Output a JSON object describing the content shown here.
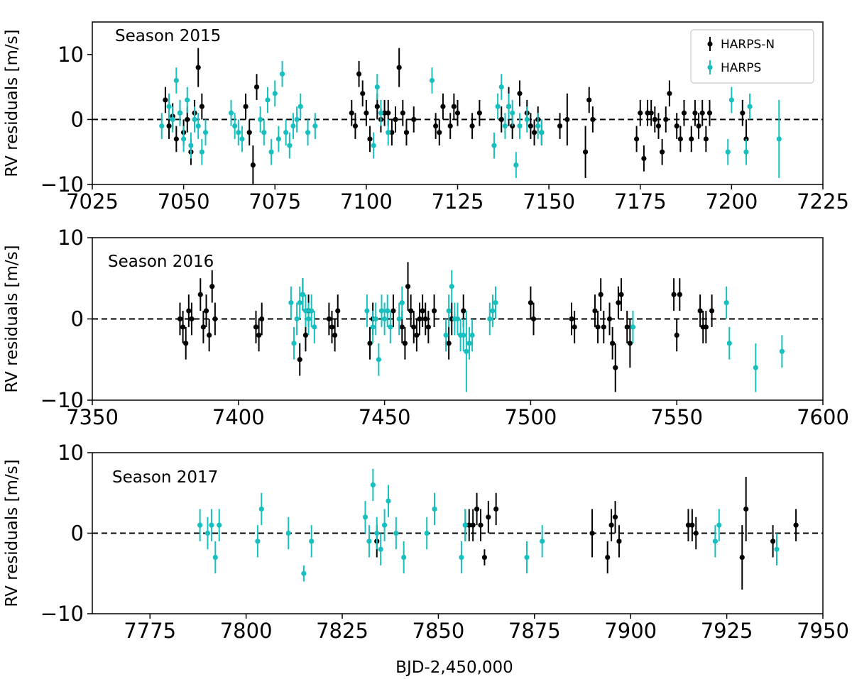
{
  "figure": {
    "xlabel": "BJD-2,450,000",
    "ylabel": "RV residuals [m/s]"
  },
  "colors": {
    "harps_n": "#000000",
    "harps": "#17bfbf",
    "zero_line": "#000000"
  },
  "legend": {
    "placement": "top-right of first panel",
    "entries": [
      "HARPS-N",
      "HARPS"
    ]
  },
  "chart_data": [
    {
      "type": "scatter",
      "title": "Season 2015",
      "xlim": [
        7025,
        7225
      ],
      "ylim": [
        -10,
        15
      ],
      "xticks": [
        7025,
        7050,
        7075,
        7100,
        7125,
        7150,
        7175,
        7200,
        7225
      ],
      "yticks": [
        -10,
        0,
        10
      ],
      "reference_line": 0,
      "series": [
        {
          "name": "HARPS-N",
          "x": [
            7045,
            7046,
            7047,
            7048,
            7049,
            7050,
            7051,
            7052,
            7053,
            7054,
            7055,
            7067,
            7068,
            7069,
            7070,
            7096,
            7097,
            7098,
            7099,
            7100,
            7101,
            7103,
            7104,
            7105,
            7106,
            7107,
            7108,
            7109,
            7110,
            7111,
            7113,
            7119,
            7120,
            7121,
            7123,
            7124,
            7125,
            7129,
            7131,
            7137,
            7139,
            7140,
            7142,
            7144,
            7145,
            7146,
            7147,
            7148,
            7153,
            7155,
            7160,
            7161,
            7162,
            7174,
            7175,
            7176,
            7177,
            7178,
            7179,
            7180,
            7181,
            7182,
            7183,
            7185,
            7186,
            7187,
            7189,
            7190,
            7191,
            7192,
            7193,
            7194,
            7203,
            7204
          ],
          "y": [
            3,
            -1,
            0.5,
            -3,
            1,
            -2,
            0,
            -5,
            1,
            8,
            2,
            2,
            -2,
            -7,
            5,
            1,
            -1,
            7,
            4,
            1,
            -3,
            2,
            0,
            1,
            1,
            -2,
            0,
            8,
            1,
            -2,
            0,
            -1,
            -2,
            2,
            -1,
            2,
            1,
            -1,
            1,
            0,
            2,
            -1,
            4,
            1,
            -1,
            -2,
            0,
            -2,
            -1,
            0,
            -5,
            3,
            0,
            -3,
            1,
            -6,
            1,
            1,
            0,
            -1,
            -5,
            0,
            4,
            -1,
            -3,
            1,
            -3,
            1,
            -1,
            1,
            -3,
            1,
            1,
            -3
          ],
          "err": [
            2,
            2,
            2,
            2,
            2,
            2,
            2,
            2,
            2,
            3,
            2,
            2,
            2,
            3,
            2,
            2,
            2,
            2,
            2,
            2,
            2,
            2,
            2,
            2,
            2,
            2,
            2,
            3,
            2,
            2,
            2,
            2,
            2,
            2,
            2,
            2,
            2,
            2,
            2,
            2,
            3,
            2,
            2,
            2,
            2,
            2,
            2,
            2,
            2,
            4,
            4,
            2,
            2,
            2,
            2,
            2,
            2,
            2,
            2,
            2,
            2,
            2,
            2,
            2,
            2,
            2,
            2,
            2,
            2,
            2,
            2,
            2,
            2,
            3
          ]
        },
        {
          "name": "HARPS",
          "x": [
            7044,
            7046,
            7047,
            7048,
            7049,
            7050,
            7051,
            7052,
            7053,
            7054,
            7055,
            7056,
            7063,
            7064,
            7065,
            7066,
            7071,
            7072,
            7073,
            7074,
            7075,
            7076,
            7077,
            7078,
            7079,
            7080,
            7081,
            7082,
            7084,
            7086,
            7102,
            7103,
            7104,
            7106,
            7118,
            7135,
            7136,
            7137,
            7138,
            7139,
            7140,
            7141,
            7142,
            7144,
            7147,
            7148,
            7199,
            7200,
            7204,
            7205,
            7213
          ],
          "y": [
            -1,
            2,
            0,
            6,
            1,
            -3,
            3,
            -4,
            0,
            -1,
            -5,
            -2,
            1,
            -1,
            -2,
            -3,
            0,
            -2,
            3,
            -5,
            4,
            -3,
            7,
            -2,
            -4,
            -1,
            0,
            2,
            -2,
            -1,
            -4,
            5,
            1,
            -2,
            6,
            -4,
            2,
            5,
            -1,
            2,
            1,
            -7,
            -1,
            0,
            -1,
            -2,
            -5,
            3,
            -5,
            2,
            -3
          ],
          "err": [
            2,
            2,
            2,
            2,
            2,
            2,
            2,
            2,
            2,
            2,
            2,
            2,
            2,
            2,
            2,
            2,
            2,
            2,
            2,
            2,
            2,
            2,
            2,
            2,
            2,
            2,
            2,
            2,
            2,
            2,
            2,
            2,
            2,
            2,
            2,
            2,
            2,
            2,
            2,
            2,
            2,
            2,
            2,
            2,
            2,
            2,
            2,
            2,
            2,
            2,
            6
          ]
        }
      ]
    },
    {
      "type": "scatter",
      "title": "Season 2016",
      "xlim": [
        7350,
        7600
      ],
      "ylim": [
        -10,
        10
      ],
      "xticks": [
        7350,
        7400,
        7450,
        7500,
        7550,
        7600
      ],
      "yticks": [
        -10,
        0,
        10
      ],
      "reference_line": 0,
      "series": [
        {
          "name": "HARPS-N",
          "x": [
            7380,
            7381,
            7382,
            7383,
            7384,
            7387,
            7388,
            7389,
            7390,
            7391,
            7392,
            7406,
            7407,
            7408,
            7421,
            7422,
            7423,
            7424,
            7431,
            7432,
            7433,
            7434,
            7445,
            7446,
            7453,
            7456,
            7457,
            7458,
            7459,
            7460,
            7461,
            7462,
            7463,
            7464,
            7465,
            7467,
            7472,
            7473,
            7477,
            7500,
            7501,
            7514,
            7515,
            7522,
            7523,
            7524,
            7525,
            7527,
            7528,
            7529,
            7530,
            7531,
            7533,
            7534,
            7549,
            7550,
            7551,
            7558,
            7559,
            7560,
            7562
          ],
          "y": [
            0,
            -1,
            -3,
            1,
            0,
            3,
            -1,
            1,
            -2,
            4,
            0,
            -1,
            -2,
            0,
            -5,
            3,
            -2,
            1,
            0,
            -1,
            -2,
            1,
            -3,
            0,
            1,
            -1,
            -3,
            4,
            1,
            -1,
            -2,
            0,
            1,
            0,
            -1,
            1,
            -3,
            0,
            1,
            2,
            0,
            0,
            -1,
            1,
            -1,
            3,
            -1,
            0,
            -3,
            -6,
            2,
            3,
            -1,
            -3,
            3,
            -2,
            3,
            1,
            -1,
            -1,
            1
          ],
          "err": [
            2,
            2,
            2,
            2,
            2,
            2,
            2,
            2,
            2,
            2,
            2,
            2,
            2,
            2,
            2,
            2,
            2,
            2,
            2,
            2,
            2,
            2,
            2,
            2,
            2,
            2,
            2,
            3,
            2,
            2,
            2,
            2,
            2,
            2,
            2,
            2,
            2,
            2,
            2,
            2,
            2,
            2,
            2,
            2,
            2,
            2,
            2,
            2,
            2,
            3,
            2,
            2,
            2,
            3,
            2,
            2,
            2,
            2,
            2,
            2,
            2
          ]
        },
        {
          "name": "HARPS",
          "x": [
            7418,
            7419,
            7420,
            7421,
            7422,
            7423,
            7424,
            7425,
            7426,
            7444,
            7446,
            7447,
            7448,
            7449,
            7450,
            7451,
            7452,
            7455,
            7456,
            7471,
            7472,
            7473,
            7474,
            7475,
            7476,
            7477,
            7478,
            7479,
            7480,
            7486,
            7487,
            7488,
            7535,
            7567,
            7568,
            7577,
            7586
          ],
          "y": [
            2,
            -3,
            0,
            2,
            3,
            1,
            0,
            1,
            -1,
            1,
            -1,
            0,
            -5,
            1,
            0,
            1,
            -1,
            0,
            2,
            -2,
            1,
            4,
            0,
            0,
            -2,
            -2,
            -4,
            -3,
            -2,
            0,
            1,
            2,
            -1,
            2,
            -3,
            -6,
            -4
          ],
          "err": [
            2,
            2,
            2,
            2,
            2,
            2,
            2,
            2,
            2,
            2,
            2,
            2,
            2,
            2,
            2,
            2,
            2,
            2,
            2,
            2,
            2,
            2,
            2,
            2,
            2,
            2,
            5,
            2,
            2,
            2,
            2,
            2,
            2,
            2,
            2,
            3,
            2
          ]
        }
      ]
    },
    {
      "type": "scatter",
      "title": "Season 2017",
      "xlim": [
        7760,
        7950
      ],
      "ylim": [
        -10,
        10
      ],
      "xticks": [
        7775,
        7800,
        7825,
        7850,
        7875,
        7900,
        7925,
        7950
      ],
      "yticks": [
        -10,
        0,
        10
      ],
      "reference_line": 0,
      "series": [
        {
          "name": "HARPS-N",
          "x": [
            7834,
            7857,
            7858,
            7859,
            7860,
            7861,
            7862,
            7863,
            7865,
            7890,
            7894,
            7895,
            7896,
            7897,
            7915,
            7916,
            7917,
            7929,
            7930,
            7937,
            7943
          ],
          "y": [
            -1,
            1,
            1,
            1,
            3,
            1,
            -3,
            2,
            3,
            0,
            -3,
            1,
            2,
            -1,
            1,
            1,
            0,
            -3,
            3,
            -1,
            1
          ],
          "err": [
            2,
            2,
            2,
            2,
            2,
            2,
            1,
            2,
            2,
            3,
            2,
            2,
            2,
            2,
            2,
            2,
            2,
            4,
            4,
            2,
            2
          ]
        },
        {
          "name": "HARPS",
          "x": [
            7788,
            7790,
            7791,
            7792,
            7793,
            7803,
            7804,
            7811,
            7815,
            7817,
            7831,
            7832,
            7833,
            7834,
            7835,
            7836,
            7837,
            7839,
            7841,
            7847,
            7849,
            7856,
            7857,
            7873,
            7877,
            7922,
            7923,
            7938
          ],
          "y": [
            1,
            0,
            1,
            -3,
            1,
            -1,
            3,
            0,
            -5,
            -1,
            2,
            -1,
            6,
            0,
            -2,
            1,
            4,
            0,
            -3,
            0,
            3,
            -3,
            1,
            -3,
            -1,
            -1,
            1,
            -2
          ],
          "err": [
            2,
            2,
            2,
            2,
            2,
            2,
            2,
            2,
            1,
            2,
            2,
            2,
            2,
            2,
            2,
            2,
            2,
            2,
            2,
            2,
            2,
            2,
            2,
            2,
            2,
            2,
            2,
            2
          ]
        }
      ]
    }
  ]
}
